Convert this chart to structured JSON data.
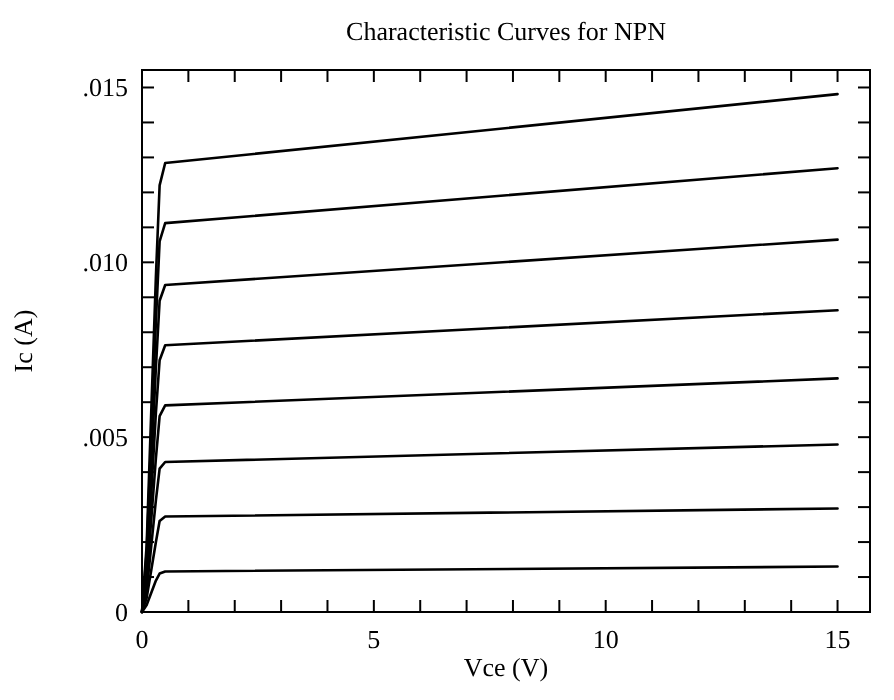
{
  "chart_data": {
    "type": "line",
    "title": "Characteristic Curves for NPN",
    "xlabel": "Vce (V)",
    "ylabel": "Ic (A)",
    "x": [
      0,
      0.1,
      0.3,
      0.38,
      0.5,
      15
    ],
    "series": [
      {
        "color": "#000000",
        "values": [
          0,
          0.0019,
          0.0096,
          0.0122,
          0.01284,
          0.01481
        ]
      },
      {
        "color": "#000000",
        "values": [
          0,
          0.0017,
          0.0083,
          0.0106,
          0.01112,
          0.01269
        ]
      },
      {
        "color": "#000000",
        "values": [
          0,
          0.0014,
          0.007,
          0.0089,
          0.00935,
          0.01065
        ]
      },
      {
        "color": "#000000",
        "values": [
          0,
          0.0011,
          0.0057,
          0.0072,
          0.00763,
          0.00863
        ]
      },
      {
        "color": "#000000",
        "values": [
          0,
          0.0009,
          0.0044,
          0.0056,
          0.00591,
          0.00668
        ]
      },
      {
        "color": "#000000",
        "values": [
          0,
          0.0006,
          0.0032,
          0.0041,
          0.00429,
          0.00479
        ]
      },
      {
        "color": "#000000",
        "values": [
          0,
          0.0004,
          0.002,
          0.0026,
          0.00273,
          0.00296
        ]
      },
      {
        "color": "#000000",
        "values": [
          0,
          0.0002,
          0.0009,
          0.0011,
          0.00116,
          0.0013
        ]
      }
    ],
    "xlim": [
      0,
      15.7
    ],
    "ylim": [
      0,
      0.0155
    ],
    "xticks": [
      0,
      {
        "value": 1,
        "label": null
      },
      {
        "value": 2,
        "label": null
      },
      {
        "value": 3,
        "label": null
      },
      {
        "value": 4,
        "label": null
      },
      5,
      {
        "value": 6,
        "label": null
      },
      {
        "value": 7,
        "label": null
      },
      {
        "value": 8,
        "label": null
      },
      {
        "value": 9,
        "label": null
      },
      10,
      {
        "value": 11,
        "label": null
      },
      {
        "value": 12,
        "label": null
      },
      {
        "value": 13,
        "label": null
      },
      {
        "value": 14,
        "label": null
      },
      15
    ],
    "yticks": [
      0,
      {
        "value": 0.001,
        "label": null
      },
      {
        "value": 0.002,
        "label": null
      },
      {
        "value": 0.003,
        "label": null
      },
      {
        "value": 0.004,
        "label": null
      },
      {
        "value": 0.005,
        "label": ".005"
      },
      {
        "value": 0.006,
        "label": null
      },
      {
        "value": 0.007,
        "label": null
      },
      {
        "value": 0.008,
        "label": null
      },
      {
        "value": 0.009,
        "label": null
      },
      {
        "value": 0.01,
        "label": ".010"
      },
      {
        "value": 0.011,
        "label": null
      },
      {
        "value": 0.012,
        "label": null
      },
      {
        "value": 0.013,
        "label": null
      },
      {
        "value": 0.014,
        "label": null
      },
      {
        "value": 0.015,
        "label": ".015"
      }
    ],
    "grid": false,
    "marker": "none",
    "line_style": "solid"
  }
}
